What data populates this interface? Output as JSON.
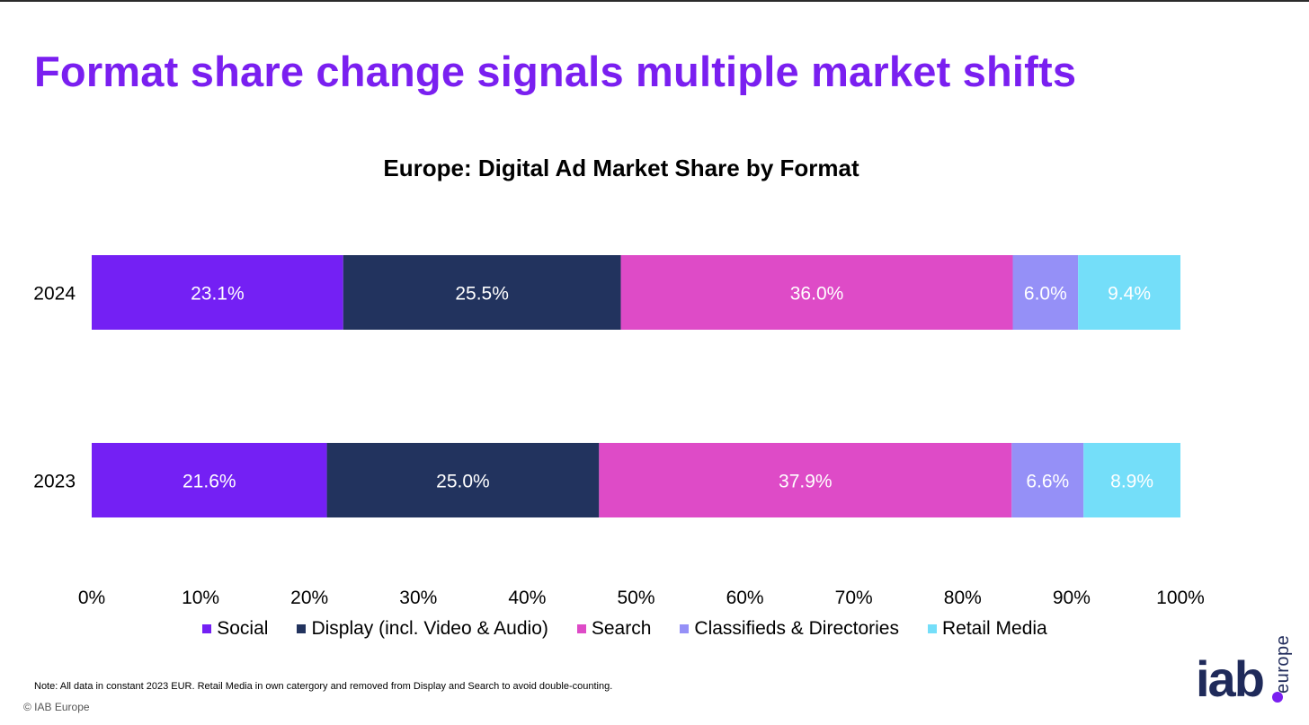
{
  "slide": {
    "headline": "Format share change signals multiple market shifts",
    "note": "Note: All data in constant 2023 EUR. Retail Media in own catergory and removed from Display and Search to avoid double-counting.",
    "copyright": "© IAB Europe",
    "logo": {
      "main": "iab",
      "sub": "europe"
    }
  },
  "chart_data": {
    "type": "bar",
    "orientation": "horizontal",
    "stacked": true,
    "title": "Europe: Digital Ad Market Share by Format",
    "categories": [
      "2024",
      "2023"
    ],
    "series": [
      {
        "name": "Social",
        "color": "#7420f4",
        "values": [
          23.1,
          21.6
        ],
        "labels": [
          "23.1%",
          "21.6%"
        ]
      },
      {
        "name": "Display (incl. Video & Audio)",
        "color": "#22335e",
        "values": [
          25.5,
          25.0
        ],
        "labels": [
          "25.5%",
          "25.0%"
        ]
      },
      {
        "name": "Search",
        "color": "#de4bc7",
        "values": [
          36.0,
          37.9
        ],
        "labels": [
          "36.0%",
          "37.9%"
        ]
      },
      {
        "name": "Classifieds & Directories",
        "color": "#9590f7",
        "values": [
          6.0,
          6.6
        ],
        "labels": [
          "6.0%",
          "6.6%"
        ]
      },
      {
        "name": "Retail Media",
        "color": "#74def9",
        "values": [
          9.4,
          8.9
        ],
        "labels": [
          "9.4%",
          "8.9%"
        ]
      }
    ],
    "xlim": [
      0,
      100
    ],
    "xticks": [
      "0%",
      "10%",
      "20%",
      "30%",
      "40%",
      "50%",
      "60%",
      "70%",
      "80%",
      "90%",
      "100%"
    ],
    "legend": "bottom",
    "grid": false
  }
}
